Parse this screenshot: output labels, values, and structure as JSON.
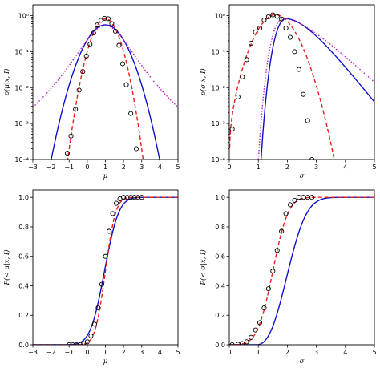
{
  "chart_data": [
    {
      "type": "line",
      "xlabel": "μ",
      "ylabel": "p(μ|x, I)",
      "xlim": [
        -3,
        5
      ],
      "ylim": [
        0.0001,
        2
      ],
      "yscale": "log",
      "xticks": [
        "−3",
        "−2",
        "−1",
        "0",
        "1",
        "2",
        "3",
        "4",
        "5"
      ],
      "yticks": [
        "10⁻⁴",
        "10⁻³",
        "10⁻²",
        "10⁻¹",
        "10⁰"
      ],
      "grid": false,
      "colors": {
        "blue": "#1010cc",
        "red": "#e8201a",
        "magenta": "#bb20bb"
      },
      "markers": {
        "x": [
          -1.1,
          -0.9,
          -0.65,
          -0.45,
          -0.25,
          -0.05,
          0.15,
          0.35,
          0.55,
          0.75,
          0.95,
          1.15,
          1.35,
          1.55,
          1.75,
          1.95,
          2.15,
          2.4,
          2.7,
          2.95
        ],
        "y": [
          0.00015,
          0.00045,
          0.0025,
          0.0085,
          0.028,
          0.075,
          0.16,
          0.33,
          0.55,
          0.74,
          0.84,
          0.82,
          0.6,
          0.37,
          0.15,
          0.046,
          0.012,
          0.0019,
          0.0002,
          5e-05
        ]
      }
    },
    {
      "type": "line",
      "xlabel": "σ",
      "ylabel": "p(σ|x, I)",
      "xlim": [
        0,
        5
      ],
      "ylim": [
        0.0001,
        2
      ],
      "yscale": "log",
      "xticks": [
        "0",
        "1",
        "2",
        "3",
        "4",
        "5"
      ],
      "yticks": [
        "10⁻⁴",
        "10⁻³",
        "10⁻²",
        "10⁻¹",
        "10⁰"
      ],
      "grid": false,
      "markers": {
        "x": [
          0.1,
          0.3,
          0.45,
          0.6,
          0.75,
          0.9,
          1.05,
          1.2,
          1.35,
          1.5,
          1.65,
          1.8,
          1.95,
          2.1,
          2.25,
          2.4,
          2.55,
          2.7,
          2.85
        ],
        "y": [
          0.0007,
          0.0055,
          0.02,
          0.06,
          0.17,
          0.35,
          0.45,
          0.75,
          0.93,
          1.05,
          0.95,
          0.8,
          0.45,
          0.25,
          0.1,
          0.032,
          0.0065,
          0.0012,
          0.0001
        ]
      }
    },
    {
      "type": "line",
      "xlabel": "μ",
      "ylabel": "P(< μ|x, I)",
      "xlim": [
        -3,
        5
      ],
      "ylim": [
        0,
        1.05
      ],
      "xticks": [
        "−3",
        "−2",
        "−1",
        "0",
        "1",
        "2",
        "3",
        "4",
        "5"
      ],
      "yticks": [
        "0.0",
        "0.2",
        "0.4",
        "0.6",
        "0.8",
        "1.0"
      ],
      "grid": false,
      "markers": {
        "x": [
          -1.0,
          -0.8,
          -0.6,
          -0.4,
          -0.2,
          0.0,
          0.2,
          0.4,
          0.6,
          0.8,
          1.0,
          1.2,
          1.4,
          1.6,
          1.8,
          2.0,
          2.2,
          2.4,
          2.6,
          2.8,
          3.0
        ],
        "y": [
          0.0,
          0.0,
          0.0,
          0.002,
          0.008,
          0.02,
          0.06,
          0.14,
          0.25,
          0.41,
          0.6,
          0.77,
          0.89,
          0.96,
          0.99,
          1.0,
          1.0,
          1.0,
          1.0,
          1.0,
          1.0
        ]
      }
    },
    {
      "type": "line",
      "xlabel": "σ",
      "ylabel": "P(< σ|x, I)",
      "xlim": [
        0,
        5
      ],
      "ylim": [
        0,
        1.05
      ],
      "xticks": [
        "0",
        "1",
        "2",
        "3",
        "4",
        "5"
      ],
      "yticks": [
        "0.0",
        "0.2",
        "0.4",
        "0.6",
        "0.8",
        "1.0"
      ],
      "grid": false,
      "markers": {
        "x": [
          0.1,
          0.3,
          0.45,
          0.6,
          0.75,
          0.9,
          1.05,
          1.2,
          1.35,
          1.5,
          1.65,
          1.8,
          1.95,
          2.1,
          2.25,
          2.4,
          2.55,
          2.7,
          2.85
        ],
        "y": [
          0.0,
          0.003,
          0.008,
          0.02,
          0.05,
          0.1,
          0.15,
          0.25,
          0.38,
          0.5,
          0.64,
          0.77,
          0.89,
          0.95,
          0.98,
          1.0,
          1.0,
          1.0,
          1.0
        ]
      }
    }
  ]
}
